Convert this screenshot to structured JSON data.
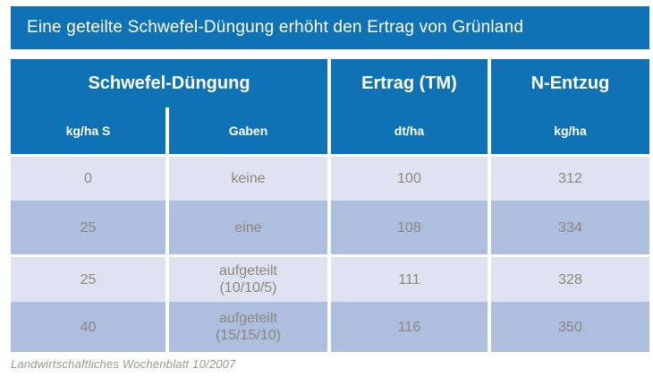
{
  "title": "Eine geteilte Schwefel-Düngung erhöht den Ertrag von Grünland",
  "colors": {
    "accent_blue": "#0f72b4",
    "row_light": "#dfe2f1",
    "row_dark": "#adbede",
    "body_text": "#8d867c",
    "header_text": "#ffffff"
  },
  "table": {
    "header_groups": [
      {
        "label": "Schwefel-Düngung"
      },
      {
        "label": "Ertrag (TM)"
      },
      {
        "label": "N-Entzug"
      }
    ],
    "sub_headers": [
      "kg/ha S",
      "Gaben",
      "dt/ha",
      "kg/ha"
    ],
    "rows": [
      [
        "0",
        "keine",
        "100",
        "312"
      ],
      [
        "25",
        "eine",
        "108",
        "334"
      ],
      [
        "25",
        "aufgeteilt\n(10/10/5)",
        "111",
        "328"
      ],
      [
        "40",
        "aufgeteilt\n(15/15/10)",
        "116",
        "350"
      ]
    ]
  },
  "footer": {
    "source": "Landwirtschaftliches Wochenblatt 10/2007"
  },
  "chart_data": {
    "type": "table",
    "title": "Eine geteilte Schwefel-Düngung erhöht den Ertrag von Grünland",
    "columns": [
      "Schwefel-Düngung kg/ha S",
      "Schwefel-Düngung Gaben",
      "Ertrag (TM) dt/ha",
      "N-Entzug kg/ha"
    ],
    "rows": [
      [
        0,
        "keine",
        100,
        312
      ],
      [
        25,
        "eine",
        108,
        334
      ],
      [
        25,
        "aufgeteilt (10/10/5)",
        111,
        328
      ],
      [
        40,
        "aufgeteilt (15/15/10)",
        116,
        350
      ]
    ],
    "source": "Landwirtschaftliches Wochenblatt 10/2007"
  }
}
